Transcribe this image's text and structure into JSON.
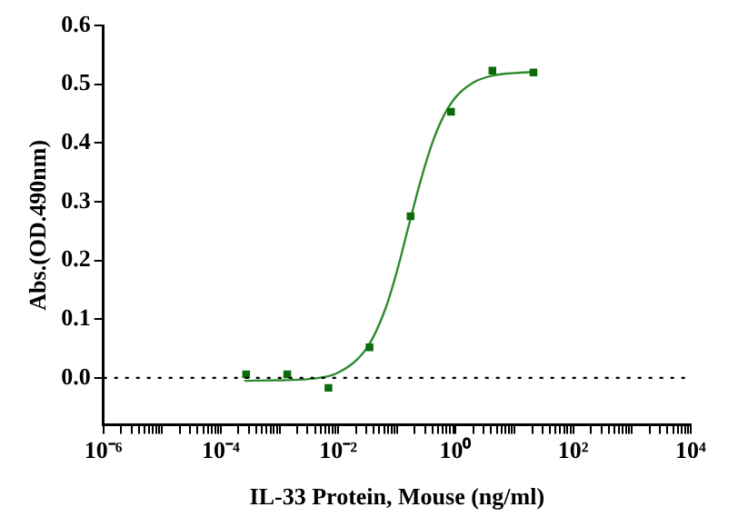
{
  "chart_data": {
    "type": "scatter",
    "xlabel": "IL-33 Protein, Mouse (ng/ml)",
    "ylabel": "Abs.(OD.490nm)",
    "log": "x",
    "grid": false,
    "legend": false,
    "marker": "square",
    "xlim": [
      1e-06,
      10000
    ],
    "xticks": [
      {
        "value": 1e-06,
        "label": "10⁻⁶"
      },
      {
        "value": 2e-06,
        "label": null
      },
      {
        "value": 3e-06,
        "label": null
      },
      {
        "value": 4e-06,
        "label": null
      },
      {
        "value": 5e-06,
        "label": null
      },
      {
        "value": 6e-06,
        "label": null
      },
      {
        "value": 7e-06,
        "label": null
      },
      {
        "value": 8e-06,
        "label": null
      },
      {
        "value": 9e-06,
        "label": null
      },
      {
        "value": 1e-05,
        "label": null
      },
      {
        "value": 2e-05,
        "label": null
      },
      {
        "value": 3e-05,
        "label": null
      },
      {
        "value": 4e-05,
        "label": null
      },
      {
        "value": 5e-05,
        "label": null
      },
      {
        "value": 6e-05,
        "label": null
      },
      {
        "value": 7e-05,
        "label": null
      },
      {
        "value": 8e-05,
        "label": null
      },
      {
        "value": 9e-05,
        "label": null
      },
      {
        "value": 0.0001,
        "label": "10⁻⁴"
      },
      {
        "value": 0.0002,
        "label": null
      },
      {
        "value": 0.0003,
        "label": null
      },
      {
        "value": 0.0004,
        "label": null
      },
      {
        "value": 0.0005,
        "label": null
      },
      {
        "value": 0.0006,
        "label": null
      },
      {
        "value": 0.0007,
        "label": null
      },
      {
        "value": 0.0008,
        "label": null
      },
      {
        "value": 0.0009,
        "label": null
      },
      {
        "value": 0.001,
        "label": null
      },
      {
        "value": 0.002,
        "label": null
      },
      {
        "value": 0.003,
        "label": null
      },
      {
        "value": 0.004,
        "label": null
      },
      {
        "value": 0.005,
        "label": null
      },
      {
        "value": 0.006,
        "label": null
      },
      {
        "value": 0.007,
        "label": null
      },
      {
        "value": 0.008,
        "label": null
      },
      {
        "value": 0.009,
        "label": null
      },
      {
        "value": 0.01,
        "label": "10⁻²"
      },
      {
        "value": 0.02,
        "label": null
      },
      {
        "value": 0.03,
        "label": null
      },
      {
        "value": 0.04,
        "label": null
      },
      {
        "value": 0.05,
        "label": null
      },
      {
        "value": 0.06,
        "label": null
      },
      {
        "value": 0.07,
        "label": null
      },
      {
        "value": 0.08,
        "label": null
      },
      {
        "value": 0.09,
        "label": null
      },
      {
        "value": 0.1,
        "label": null
      },
      {
        "value": 0.2,
        "label": null
      },
      {
        "value": 0.3,
        "label": null
      },
      {
        "value": 0.4,
        "label": null
      },
      {
        "value": 0.5,
        "label": null
      },
      {
        "value": 0.6,
        "label": null
      },
      {
        "value": 0.7,
        "label": null
      },
      {
        "value": 0.8,
        "label": null
      },
      {
        "value": 0.9,
        "label": null
      },
      {
        "value": 1,
        "label": "10⁰"
      },
      {
        "value": 2,
        "label": null
      },
      {
        "value": 3,
        "label": null
      },
      {
        "value": 4,
        "label": null
      },
      {
        "value": 5,
        "label": null
      },
      {
        "value": 6,
        "label": null
      },
      {
        "value": 7,
        "label": null
      },
      {
        "value": 8,
        "label": null
      },
      {
        "value": 9,
        "label": null
      },
      {
        "value": 10,
        "label": null
      },
      {
        "value": 20,
        "label": null
      },
      {
        "value": 30,
        "label": null
      },
      {
        "value": 40,
        "label": null
      },
      {
        "value": 50,
        "label": null
      },
      {
        "value": 60,
        "label": null
      },
      {
        "value": 70,
        "label": null
      },
      {
        "value": 80,
        "label": null
      },
      {
        "value": 90,
        "label": null
      },
      {
        "value": 100,
        "label": "10²"
      },
      {
        "value": 200,
        "label": null
      },
      {
        "value": 300,
        "label": null
      },
      {
        "value": 400,
        "label": null
      },
      {
        "value": 500,
        "label": null
      },
      {
        "value": 600,
        "label": null
      },
      {
        "value": 700,
        "label": null
      },
      {
        "value": 800,
        "label": null
      },
      {
        "value": 900,
        "label": null
      },
      {
        "value": 1000,
        "label": null
      },
      {
        "value": 2000,
        "label": null
      },
      {
        "value": 3000,
        "label": null
      },
      {
        "value": 4000,
        "label": null
      },
      {
        "value": 5000,
        "label": null
      },
      {
        "value": 6000,
        "label": null
      },
      {
        "value": 7000,
        "label": null
      },
      {
        "value": 8000,
        "label": null
      },
      {
        "value": 9000,
        "label": null
      },
      {
        "value": 10000,
        "label": "10⁴"
      }
    ],
    "ylim": [
      -0.08,
      0.6
    ],
    "yticks": [
      {
        "value": 0,
        "label": "0.0"
      },
      {
        "value": 0.1,
        "label": "0.1"
      },
      {
        "value": 0.2,
        "label": "0.2"
      },
      {
        "value": 0.3,
        "label": "0.3"
      },
      {
        "value": 0.4,
        "label": "0.4"
      },
      {
        "value": 0.5,
        "label": "0.5"
      },
      {
        "value": 0.6,
        "label": "0.6"
      }
    ],
    "ref_lines": [
      {
        "axis": "y",
        "value": 0,
        "line_style": "dotted",
        "color": "#000000"
      }
    ],
    "series": [
      {
        "color": "#0b6b0b",
        "x": [
          0.00027,
          0.00135,
          0.0068,
          0.034,
          0.17,
          0.83,
          4.2,
          21
        ],
        "values": [
          0.006,
          0.006,
          -0.017,
          0.052,
          0.275,
          0.453,
          0.523,
          0.52
        ]
      },
      {
        "type": "line",
        "marker": "none",
        "color": "#2e8b2e",
        "line_style": "solid",
        "x": [
          0.000251,
          0.001,
          0.00316,
          0.01,
          0.0316,
          0.0631,
          0.1,
          0.158,
          0.251,
          0.398,
          0.631,
          1,
          2,
          3.98,
          10,
          22.4
        ],
        "values": [
          -0.005,
          -0.004,
          -0.002,
          0.009,
          0.053,
          0.117,
          0.182,
          0.259,
          0.335,
          0.4,
          0.447,
          0.478,
          0.503,
          0.514,
          0.519,
          0.521
        ]
      }
    ]
  }
}
